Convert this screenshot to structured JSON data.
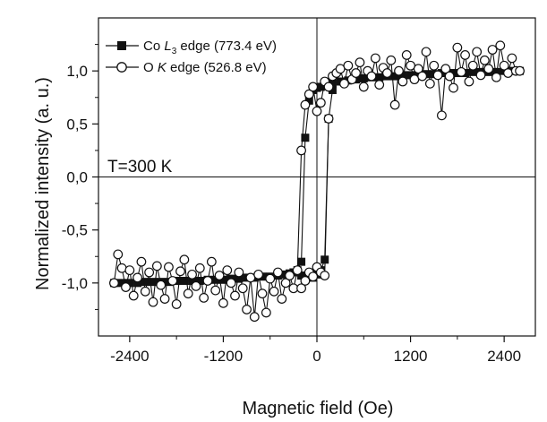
{
  "chart_data": {
    "type": "scatter",
    "xlabel": "Magnetic field (Oe)",
    "ylabel": "Normalized intensity (a. u.)",
    "xlim": [
      -2800,
      2800
    ],
    "ylim": [
      -1.5,
      1.5
    ],
    "xticks": [
      -2400,
      -1200,
      0,
      1200,
      2400
    ],
    "xtick_labels": [
      "-2400",
      "-1200",
      "0",
      "1200",
      "2400"
    ],
    "yticks": [
      -1.0,
      -0.5,
      0.0,
      0.5,
      1.0
    ],
    "ytick_labels": [
      "-1,0",
      "-0,5",
      "0,0",
      "0,5",
      "1,0"
    ],
    "annotation": "T=300 K",
    "legend_position": "top-left",
    "series": [
      {
        "name": "Co L3 edge (773.4 eV)",
        "legend_prefix": "Co ",
        "legend_italic": "L",
        "legend_sub": "3",
        "legend_suffix": " edge (773.4 eV)",
        "marker": "square-filled",
        "x": [
          -2600,
          -2500,
          -2400,
          -2300,
          -2200,
          -2100,
          -2000,
          -1900,
          -1800,
          -1700,
          -1600,
          -1500,
          -1400,
          -1300,
          -1200,
          -1100,
          -1000,
          -900,
          -800,
          -700,
          -600,
          -500,
          -400,
          -350,
          -300,
          -250,
          -200,
          -150,
          -100,
          -50,
          0,
          50,
          100,
          150,
          200,
          300,
          400,
          500,
          600,
          700,
          800,
          900,
          1000,
          1100,
          1200,
          1300,
          1400,
          1500,
          1600,
          1700,
          1800,
          1900,
          2000,
          2100,
          2200,
          2300,
          2400,
          2500,
          2600
        ],
        "values": [
          -1.0,
          -1.0,
          -1.0,
          -1.0,
          -0.99,
          -0.99,
          -0.99,
          -0.99,
          -0.98,
          -0.98,
          -0.98,
          -0.98,
          -0.97,
          -0.97,
          -0.97,
          -0.96,
          -0.96,
          -0.95,
          -0.95,
          -0.94,
          -0.94,
          -0.93,
          -0.92,
          -0.91,
          -0.9,
          -0.88,
          -0.8,
          0.37,
          0.72,
          0.82,
          0.84,
          0.85,
          0.86,
          0.87,
          0.88,
          0.9,
          0.91,
          0.92,
          0.93,
          0.94,
          0.94,
          0.95,
          0.95,
          0.96,
          0.96,
          0.97,
          0.97,
          0.97,
          0.98,
          0.98,
          0.98,
          0.98,
          0.99,
          0.99,
          0.99,
          0.99,
          1.0,
          1.0,
          1.0
        ]
      },
      {
        "name": "Co L3 edge return branch",
        "marker": "square-filled",
        "in_legend": false,
        "x": [
          -200,
          -100,
          -50,
          0,
          50,
          100,
          150,
          200
        ],
        "values": [
          -0.93,
          -0.94,
          -0.95,
          -0.92,
          -0.88,
          -0.78,
          0.55,
          0.82
        ]
      },
      {
        "name": "O K edge (526.8 eV)",
        "legend_prefix": "O ",
        "legend_italic": "K",
        "legend_sub": "",
        "legend_suffix": " edge (526.8 eV)",
        "marker": "circle-open",
        "x": [
          -2600,
          -2550,
          -2500,
          -2450,
          -2400,
          -2350,
          -2300,
          -2250,
          -2200,
          -2150,
          -2100,
          -2050,
          -2000,
          -1950,
          -1900,
          -1850,
          -1800,
          -1750,
          -1700,
          -1650,
          -1600,
          -1550,
          -1500,
          -1450,
          -1400,
          -1350,
          -1300,
          -1250,
          -1200,
          -1150,
          -1100,
          -1050,
          -1000,
          -950,
          -900,
          -850,
          -800,
          -750,
          -700,
          -650,
          -600,
          -550,
          -500,
          -450,
          -400,
          -350,
          -300,
          -250,
          -200,
          -150,
          -100,
          -50,
          0,
          50,
          100,
          150,
          200,
          250,
          300,
          350,
          400,
          450,
          500,
          550,
          600,
          650,
          700,
          750,
          800,
          850,
          900,
          950,
          1000,
          1050,
          1100,
          1150,
          1200,
          1250,
          1300,
          1350,
          1400,
          1450,
          1500,
          1550,
          1600,
          1650,
          1700,
          1750,
          1800,
          1850,
          1900,
          1950,
          2000,
          2050,
          2100,
          2150,
          2200,
          2250,
          2300,
          2350,
          2400,
          2450,
          2500,
          2550,
          2600
        ],
        "values": [
          -1.0,
          -0.73,
          -0.86,
          -1.04,
          -0.88,
          -1.12,
          -0.95,
          -0.8,
          -1.08,
          -0.9,
          -1.18,
          -0.84,
          -1.02,
          -1.15,
          -0.85,
          -0.98,
          -1.2,
          -0.89,
          -0.78,
          -1.1,
          -0.92,
          -1.03,
          -0.86,
          -1.14,
          -0.98,
          -0.8,
          -1.07,
          -0.93,
          -1.19,
          -0.88,
          -1.0,
          -1.12,
          -0.9,
          -1.05,
          -1.25,
          -0.95,
          -1.32,
          -0.92,
          -1.1,
          -1.28,
          -0.96,
          -1.08,
          -0.9,
          -1.15,
          -1.0,
          -0.93,
          -1.05,
          -0.88,
          0.25,
          0.68,
          0.78,
          0.85,
          0.62,
          0.7,
          0.9,
          0.85,
          0.95,
          0.98,
          1.02,
          0.88,
          1.05,
          0.92,
          0.98,
          1.08,
          0.85,
          1.0,
          0.95,
          1.12,
          0.87,
          1.03,
          0.98,
          1.1,
          0.68,
          1.0,
          0.9,
          1.15,
          1.05,
          0.92,
          1.02,
          0.95,
          1.18,
          0.88,
          1.05,
          0.96,
          0.58,
          1.02,
          0.95,
          0.84,
          1.22,
          0.99,
          1.15,
          0.9,
          1.05,
          1.18,
          0.96,
          1.1,
          1.02,
          1.2,
          0.94,
          1.24,
          1.05,
          0.98,
          1.12,
          1.0,
          1.0
        ]
      },
      {
        "name": "O K edge return branch",
        "marker": "circle-open",
        "in_legend": false,
        "x": [
          -200,
          -150,
          -100,
          -50,
          0,
          50,
          100,
          150
        ],
        "values": [
          -1.05,
          -0.98,
          -0.9,
          -0.94,
          -0.85,
          -0.9,
          -0.93,
          0.55
        ]
      }
    ]
  }
}
